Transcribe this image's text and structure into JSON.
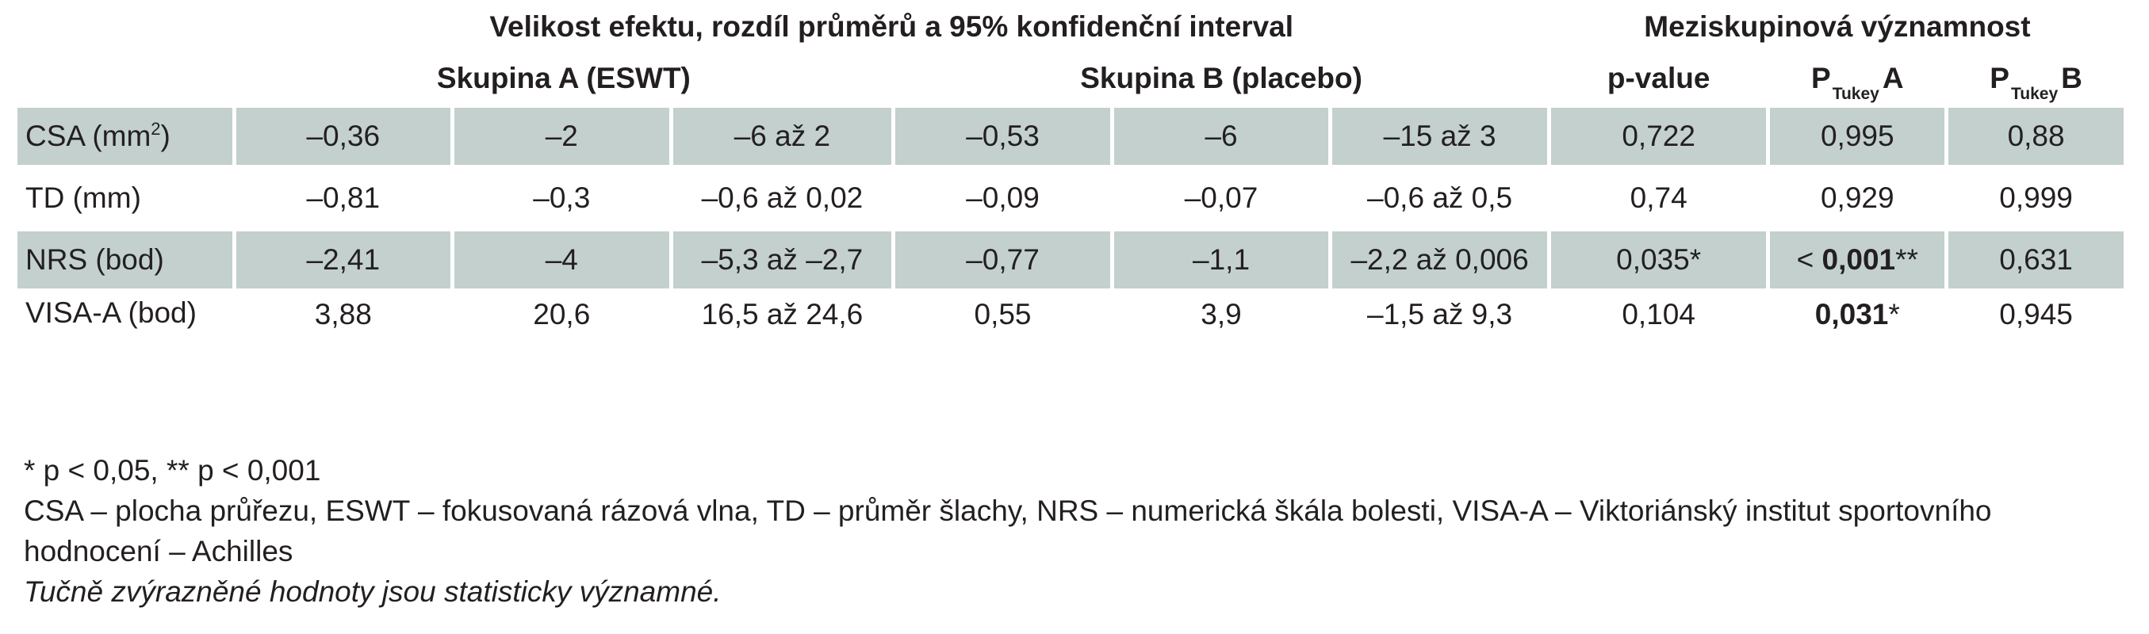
{
  "header": {
    "effect_title": "Velikost efektu, rozdíl průměrů a 95% konfidenční interval",
    "significance_title": "Meziskupinová významnost",
    "group_a": "Skupina A (ESWT)",
    "group_b": "Skupina B (placebo)",
    "pvalue": "p-value",
    "ptukey_p": "P",
    "ptukey_sub": "Tukey",
    "ptukey_a": "A",
    "ptukey_b": "B"
  },
  "rows": [
    {
      "label_main": "CSA (mm",
      "label_sup": "2",
      "label_end": ")",
      "a1": "–0,36",
      "a2": "–2",
      "a3": "–6 až 2",
      "b1": "–0,53",
      "b2": "–6",
      "b3": "–15 až 3",
      "p": "0,722",
      "pta_pre": "",
      "pta_bold": "",
      "pta_post": "0,995",
      "ptb": "0,88"
    },
    {
      "label": "TD (mm)",
      "a1": "–0,81",
      "a2": "–0,3",
      "a3": "–0,6 až 0,02",
      "b1": "–0,09",
      "b2": "–0,07",
      "b3": "–0,6 až 0,5",
      "p": "0,74",
      "pta_pre": "",
      "pta_bold": "",
      "pta_post": "0,929",
      "ptb": "0,999"
    },
    {
      "label": "NRS (bod)",
      "a1": "–2,41",
      "a2": "–4",
      "a3": "–5,3 až –2,7",
      "b1": "–0,77",
      "b2": "–1,1",
      "b3": "–2,2 až 0,006",
      "p": "0,035*",
      "pta_pre": "< ",
      "pta_bold": "0,001",
      "pta_post": "**",
      "ptb": "0,631"
    },
    {
      "label": "VISA-A (bod)",
      "a1": "3,88",
      "a2": "20,6",
      "a3": "16,5 až 24,6",
      "b1": "0,55",
      "b2": "3,9",
      "b3": "–1,5 až 9,3",
      "p": "0,104",
      "pta_pre": "",
      "pta_bold": "0,031",
      "pta_post": "*",
      "ptb": "0,945"
    }
  ],
  "notes": {
    "sig": "* p < 0,05, ** p < 0,001",
    "abbr": "CSA – plocha průřezu, ESWT – fokusovaná rázová vlna, TD – průměr šlachy, NRS – numerická škála bolesti, VISA-A – Viktoriánský institut sportovního hodnocení – Achilles",
    "bold_note": "Tučně zvýrazněné hodnoty jsou statisticky významné."
  },
  "colors": {
    "row_shade": "#c3d0ce",
    "text": "#231f20"
  }
}
